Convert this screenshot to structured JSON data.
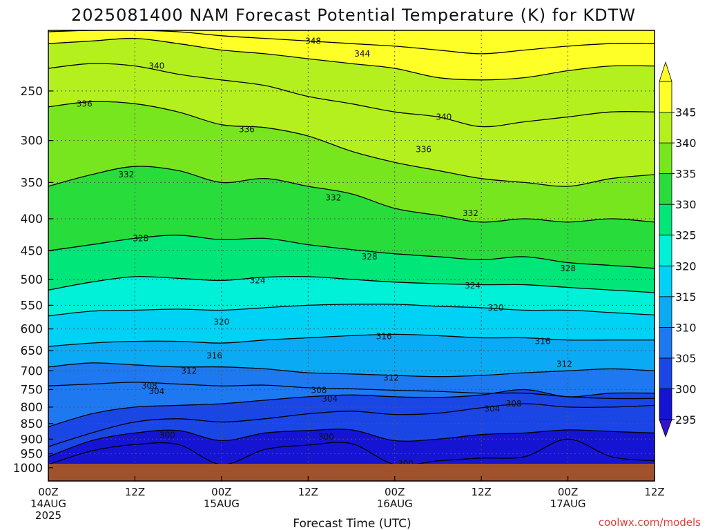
{
  "colors": {
    "bands": [
      "#1414d2",
      "#1a46e6",
      "#1e78f0",
      "#0aaaf5",
      "#00d2f5",
      "#00f0d8",
      "#00e678",
      "#28dc3c",
      "#78e61e",
      "#b4f01e",
      "#ffff28"
    ],
    "ground": "#a0522d",
    "contour": "#000000",
    "footer": "#e03c3c"
  },
  "chart_data": {
    "type": "heatmap",
    "title": "2025081400 NAM Forecast Potential Temperature (K) for KDTW",
    "xlabel": "Forecast Time (UTC)",
    "ylabel": "",
    "x_range_hours": [
      0,
      84
    ],
    "x_ticks": [
      {
        "hour": 0,
        "label": "00Z",
        "date": "14AUG",
        "year": "2025"
      },
      {
        "hour": 12,
        "label": "12Z",
        "date": "",
        "year": ""
      },
      {
        "hour": 24,
        "label": "00Z",
        "date": "15AUG",
        "year": ""
      },
      {
        "hour": 36,
        "label": "12Z",
        "date": "",
        "year": ""
      },
      {
        "hour": 48,
        "label": "00Z",
        "date": "16AUG",
        "year": ""
      },
      {
        "hour": 60,
        "label": "12Z",
        "date": "",
        "year": ""
      },
      {
        "hour": 72,
        "label": "00Z",
        "date": "17AUG",
        "year": ""
      },
      {
        "hour": 84,
        "label": "12Z",
        "date": "",
        "year": ""
      }
    ],
    "y_axis": "pressure (hPa), log scale, inverted",
    "y_range": [
      1050,
      200
    ],
    "y_ticks": [
      "250",
      "300",
      "350",
      "400",
      "450",
      "500",
      "550",
      "600",
      "650",
      "700",
      "750",
      "800",
      "850",
      "900",
      "950",
      "1000"
    ],
    "colorbar": {
      "levels": [
        "295",
        "300",
        "305",
        "310",
        "315",
        "320",
        "325",
        "330",
        "335",
        "340",
        "345"
      ],
      "units": "K"
    },
    "grid": "dotted",
    "x_samples": [
      0,
      6,
      12,
      18,
      24,
      30,
      36,
      42,
      48,
      54,
      60,
      66,
      72,
      78,
      84
    ],
    "isentropes": [
      {
        "theta": 300,
        "p": [
          988,
          940,
          918,
          918,
          988,
          935,
          920,
          915,
          988,
          975,
          965,
          960,
          900,
          960,
          975
        ]
      },
      {
        "theta": 302,
        "p": [
          960,
          905,
          880,
          872,
          905,
          880,
          872,
          870,
          905,
          900,
          885,
          880,
          870,
          875,
          880
        ]
      },
      {
        "theta": 304,
        "p": [
          925,
          880,
          845,
          835,
          845,
          835,
          820,
          812,
          822,
          818,
          802,
          790,
          800,
          800,
          795
        ]
      },
      {
        "theta": 306,
        "p": [
          860,
          820,
          800,
          795,
          790,
          780,
          770,
          765,
          770,
          772,
          765,
          750,
          770,
          760,
          760
        ]
      },
      {
        "theta": 308,
        "p": [
          740,
          735,
          730,
          735,
          740,
          738,
          745,
          748,
          752,
          755,
          760,
          760,
          770,
          775,
          775
        ]
      },
      {
        "theta": 312,
        "p": [
          690,
          680,
          685,
          690,
          690,
          695,
          705,
          708,
          712,
          715,
          712,
          705,
          700,
          695,
          700
        ]
      },
      {
        "theta": 316,
        "p": [
          640,
          632,
          628,
          628,
          632,
          625,
          620,
          615,
          612,
          615,
          620,
          620,
          625,
          625,
          625
        ]
      },
      {
        "theta": 320,
        "p": [
          572,
          562,
          560,
          558,
          560,
          555,
          550,
          548,
          548,
          552,
          555,
          560,
          560,
          565,
          570
        ]
      },
      {
        "theta": 324,
        "p": [
          520,
          505,
          495,
          498,
          502,
          496,
          495,
          500,
          505,
          508,
          510,
          510,
          515,
          520,
          525
        ]
      },
      {
        "theta": 328,
        "p": [
          450,
          440,
          430,
          425,
          432,
          430,
          440,
          448,
          455,
          460,
          465,
          460,
          470,
          475,
          480
        ]
      },
      {
        "theta": 332,
        "p": [
          355,
          340,
          330,
          335,
          350,
          345,
          355,
          365,
          385,
          395,
          405,
          400,
          405,
          400,
          405
        ]
      },
      {
        "theta": 336,
        "p": [
          265,
          260,
          262,
          270,
          283,
          286,
          295,
          312,
          325,
          335,
          345,
          350,
          355,
          345,
          340
        ]
      },
      {
        "theta": 340,
        "p": [
          230,
          226,
          228,
          235,
          240,
          245,
          255,
          262,
          270,
          275,
          285,
          280,
          275,
          270,
          270
        ]
      },
      {
        "theta": 344,
        "p": [
          210,
          208,
          206,
          210,
          215,
          218,
          222,
          226,
          230,
          238,
          240,
          238,
          232,
          228,
          228
        ]
      },
      {
        "theta": 348,
        "p": [
          201,
          200,
          200,
          201,
          204,
          206,
          208,
          210,
          212,
          215,
          218,
          215,
          212,
          210,
          210
        ]
      }
    ],
    "labels": [
      {
        "text": "348",
        "hour": 36.7,
        "p": 208
      },
      {
        "text": "344",
        "hour": 43.5,
        "p": 218
      },
      {
        "text": "340",
        "hour": 15.0,
        "p": 228
      },
      {
        "text": "340",
        "hour": 54.8,
        "p": 275
      },
      {
        "text": "336",
        "hour": 5.0,
        "p": 262
      },
      {
        "text": "336",
        "hour": 27.5,
        "p": 288
      },
      {
        "text": "336",
        "hour": 52.0,
        "p": 310
      },
      {
        "text": "332",
        "hour": 10.8,
        "p": 340
      },
      {
        "text": "332",
        "hour": 39.5,
        "p": 370
      },
      {
        "text": "332",
        "hour": 58.5,
        "p": 392
      },
      {
        "text": "328",
        "hour": 12.8,
        "p": 430
      },
      {
        "text": "328",
        "hour": 44.5,
        "p": 460
      },
      {
        "text": "328",
        "hour": 72.0,
        "p": 480
      },
      {
        "text": "324",
        "hour": 29.0,
        "p": 502
      },
      {
        "text": "324",
        "hour": 58.8,
        "p": 512
      },
      {
        "text": "320",
        "hour": 24.0,
        "p": 585
      },
      {
        "text": "320",
        "hour": 62.0,
        "p": 555
      },
      {
        "text": "316",
        "hour": 23.0,
        "p": 662
      },
      {
        "text": "316",
        "hour": 46.5,
        "p": 617
      },
      {
        "text": "316",
        "hour": 68.5,
        "p": 628
      },
      {
        "text": "312",
        "hour": 19.5,
        "p": 700
      },
      {
        "text": "312",
        "hour": 47.5,
        "p": 718
      },
      {
        "text": "312",
        "hour": 71.5,
        "p": 683
      },
      {
        "text": "308",
        "hour": 14.0,
        "p": 740
      },
      {
        "text": "308",
        "hour": 37.5,
        "p": 752
      },
      {
        "text": "308",
        "hour": 64.5,
        "p": 790
      },
      {
        "text": "304",
        "hour": 15.0,
        "p": 755
      },
      {
        "text": "304",
        "hour": 39.0,
        "p": 776
      },
      {
        "text": "304",
        "hour": 61.5,
        "p": 805
      },
      {
        "text": "300",
        "hour": 16.5,
        "p": 887
      },
      {
        "text": "300",
        "hour": 38.5,
        "p": 893
      },
      {
        "text": "300",
        "hour": 49.5,
        "p": 985
      }
    ]
  },
  "footer": {
    "credit": "coolwx.com/models"
  }
}
